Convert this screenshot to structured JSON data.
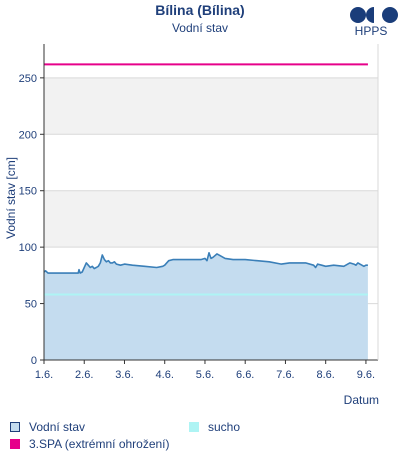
{
  "header": {
    "title": "Bílina (Bílina)",
    "subtitle": "Vodní stav",
    "logo_text": "HPPS"
  },
  "colors": {
    "area_fill": "#c4dcef",
    "line": "#3a7fb8",
    "dry": "#aef4f4",
    "spa3": "#e6008a",
    "band": "#f2f2f2",
    "grid": "#d9d9d9",
    "text": "#1f3f7a",
    "logo": "#1a3d7a"
  },
  "chart_data": {
    "type": "line",
    "title": "Bílina (Bílina)",
    "subtitle": "Vodní stav",
    "xlabel": "Datum",
    "ylabel": "Vodní stav [cm]",
    "ylim": [
      0,
      280
    ],
    "xlim": [
      0,
      8.3
    ],
    "x_ticks": [
      {
        "x": 0,
        "label": "1.6."
      },
      {
        "x": 1,
        "label": "2.6."
      },
      {
        "x": 2,
        "label": "3.6."
      },
      {
        "x": 3,
        "label": "4.6."
      },
      {
        "x": 4,
        "label": "5.6."
      },
      {
        "x": 5,
        "label": "6.6."
      },
      {
        "x": 6,
        "label": "7.6."
      },
      {
        "x": 7,
        "label": "8.6."
      },
      {
        "x": 8,
        "label": "9.6."
      }
    ],
    "y_ticks": [
      0,
      50,
      100,
      150,
      200,
      250
    ],
    "grid": true,
    "legend_placement": "bottom",
    "series": [
      {
        "name": "Vodní stav",
        "x": [
          0,
          0.04,
          0.1,
          0.2,
          0.6,
          0.85,
          0.87,
          0.9,
          0.95,
          1.05,
          1.1,
          1.15,
          1.2,
          1.25,
          1.3,
          1.35,
          1.4,
          1.45,
          1.5,
          1.55,
          1.6,
          1.65,
          1.7,
          1.75,
          1.8,
          1.9,
          2.0,
          2.2,
          2.5,
          2.8,
          2.95,
          3.0,
          3.1,
          3.2,
          3.3,
          3.5,
          3.7,
          3.9,
          4.0,
          4.05,
          4.1,
          4.15,
          4.2,
          4.3,
          4.4,
          4.5,
          4.7,
          5.0,
          5.3,
          5.6,
          5.9,
          6.1,
          6.2,
          6.5,
          6.7,
          6.75,
          6.8,
          6.9,
          7.0,
          7.2,
          7.45,
          7.5,
          7.6,
          7.7,
          7.75,
          7.8,
          7.85,
          7.9,
          7.95,
          8.0,
          8.05
        ],
        "values": [
          78,
          79,
          77,
          77,
          77,
          77,
          80,
          77,
          78,
          86,
          84,
          82,
          83,
          81,
          82,
          83,
          86,
          93,
          89,
          87,
          88,
          86,
          86,
          87,
          85,
          84,
          85,
          84,
          83,
          82,
          83,
          84,
          88,
          89,
          89,
          89,
          89,
          89,
          90,
          88,
          95,
          90,
          91,
          94,
          92,
          90,
          89,
          89,
          88,
          87,
          85,
          86,
          86,
          86,
          84,
          82,
          85,
          84,
          83,
          84,
          83,
          84,
          86,
          85,
          84,
          86,
          85,
          84,
          83,
          84,
          84
        ]
      },
      {
        "name": "sucho",
        "x": [
          0,
          8.05
        ],
        "values": [
          58,
          58
        ]
      },
      {
        "name": "3.SPA (extrémní ohrožení)",
        "x": [
          0,
          8.05
        ],
        "values": [
          262,
          262
        ]
      }
    ],
    "bands": [
      {
        "from": 100,
        "to": 150
      },
      {
        "from": 200,
        "to": 250
      }
    ]
  },
  "legend": {
    "items": [
      {
        "label": "Vodní stav",
        "swatch": "box"
      },
      {
        "label": "sucho",
        "swatch": "dry"
      },
      {
        "label": "3.SPA (extrémní ohrožení)",
        "swatch": "spa3"
      }
    ]
  }
}
